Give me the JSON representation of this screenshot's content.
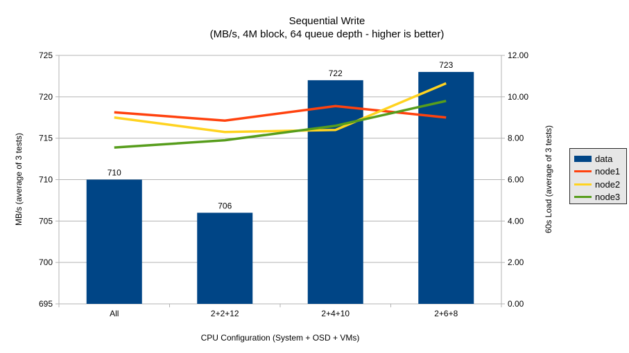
{
  "chart_data": {
    "type": "bar+line",
    "title": "Sequential Write",
    "subtitle": "(MB/s, 4M block, 64 queue depth - higher is better)",
    "xlabel": "CPU Configuration (System + OSD + VMs)",
    "categories": [
      "All",
      "2+2+12",
      "2+4+10",
      "2+6+8"
    ],
    "left_axis": {
      "label": "MB/s (average of 3 tests)",
      "min": 695,
      "max": 725,
      "step": 5,
      "ticks": [
        "695",
        "700",
        "705",
        "710",
        "715",
        "720",
        "725"
      ]
    },
    "right_axis": {
      "label": "60s Load (average of 3 tests)",
      "min": 0,
      "max": 12,
      "step": 2,
      "ticks": [
        "0.00",
        "2.00",
        "4.00",
        "6.00",
        "8.00",
        "10.00",
        "12.00"
      ]
    },
    "bar_series": {
      "name": "data",
      "axis": "left",
      "color": "#004586",
      "values": [
        710,
        706,
        722,
        723
      ],
      "value_labels": [
        "710",
        "706",
        "722",
        "723"
      ]
    },
    "line_series": [
      {
        "name": "node1",
        "axis": "right",
        "color": "#FF420E",
        "values": [
          9.25,
          8.85,
          9.55,
          9.0
        ]
      },
      {
        "name": "node2",
        "axis": "right",
        "color": "#FFD320",
        "values": [
          9.0,
          8.3,
          8.4,
          10.65
        ]
      },
      {
        "name": "node3",
        "axis": "right",
        "color": "#579D1C",
        "values": [
          7.55,
          7.9,
          8.6,
          9.8
        ]
      }
    ],
    "grid": true,
    "legend_position": "right",
    "style": {
      "background": "#ffffff",
      "text": "#000000",
      "grid_color": "#b3b3b3",
      "axis_color": "#b3b3b3",
      "legend_bg": "#e6e6e6",
      "legend_border": "#262626"
    }
  }
}
